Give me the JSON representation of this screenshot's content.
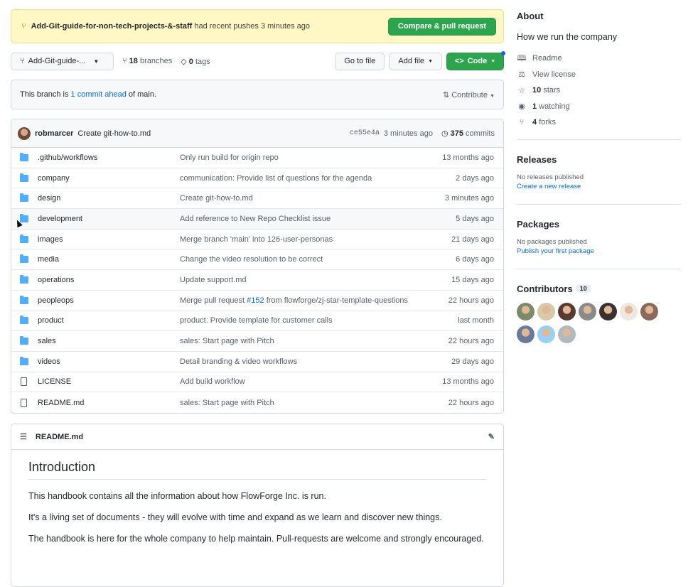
{
  "banner": {
    "branch": "Add-Git-guide-for-non-tech-projects-&-staff",
    "text": "had recent pushes 3 minutes ago",
    "button": "Compare & pull request"
  },
  "toolbar": {
    "branch_select": "Add-Git-guide-...",
    "branches_count": "18",
    "branches_label": "branches",
    "tags_count": "0",
    "tags_label": "tags",
    "go_to_file": "Go to file",
    "add_file": "Add file",
    "code": "Code"
  },
  "branch_info": {
    "prefix": "This branch is",
    "link": "1 commit ahead",
    "suffix": "of main.",
    "contribute": "Contribute"
  },
  "latest_commit": {
    "author": "robmarcer",
    "message": "Create git-how-to.md",
    "sha": "ce55e4a",
    "age": "3 minutes ago",
    "commits_count": "375",
    "commits_label": "commits"
  },
  "files": [
    {
      "type": "dir",
      "name": ".github/workflows",
      "message": "Only run build for origin repo",
      "age": "13 months ago"
    },
    {
      "type": "dir",
      "name": "company",
      "message": "communication: Provide list of questions for the agenda",
      "age": "2 days ago"
    },
    {
      "type": "dir",
      "name": "design",
      "message": "Create git-how-to.md",
      "age": "3 minutes ago"
    },
    {
      "type": "dir",
      "name": "development",
      "message": "Add reference to New Repo Checklist issue",
      "age": "5 days ago"
    },
    {
      "type": "dir",
      "name": "images",
      "message": "Merge branch 'main' into 126-user-personas",
      "age": "21 days ago"
    },
    {
      "type": "dir",
      "name": "media",
      "message": "Change the video resolution to be correct",
      "age": "6 days ago"
    },
    {
      "type": "dir",
      "name": "operations",
      "message": "Update support.md",
      "age": "15 days ago"
    },
    {
      "type": "dir",
      "name": "peopleops",
      "message": "Merge pull request ",
      "message_link": "#152",
      "message_suffix": " from flowforge/zj-star-template-questions",
      "age": "22 hours ago"
    },
    {
      "type": "dir",
      "name": "product",
      "message": "product: Provide template for customer calls",
      "age": "last month"
    },
    {
      "type": "dir",
      "name": "sales",
      "message": "sales: Start page with Pitch",
      "age": "22 hours ago"
    },
    {
      "type": "dir",
      "name": "videos",
      "message": "Detail branding & video workflows",
      "age": "29 days ago"
    },
    {
      "type": "file",
      "name": "LICENSE",
      "message": "Add build workflow",
      "age": "13 months ago"
    },
    {
      "type": "file",
      "name": "README.md",
      "message": "sales: Start page with Pitch",
      "age": "22 hours ago"
    }
  ],
  "readme": {
    "filename": "README.md",
    "heading": "Introduction",
    "paragraphs": [
      "This handbook contains all the information about how FlowForge Inc. is run.",
      "It's a living set of documents - they will evolve with time and expand as we learn and discover new things.",
      "The handbook is here for the whole company to help maintain. Pull-requests are welcome and strongly encouraged."
    ]
  },
  "about": {
    "title": "About",
    "description": "How we run the company",
    "readme": "Readme",
    "license": "View license",
    "stars_count": "10",
    "stars_label": "stars",
    "watching_count": "1",
    "watching_label": "watching",
    "forks_count": "4",
    "forks_label": "forks"
  },
  "releases": {
    "title": "Releases",
    "empty": "No releases published",
    "link": "Create a new release"
  },
  "packages": {
    "title": "Packages",
    "empty": "No packages published",
    "link": "Publish your first package"
  },
  "contributors": {
    "title": "Contributors",
    "count": "10",
    "avatar_colors": [
      "#7a8a6a",
      "#d8c9a8",
      "#5a3a30",
      "#8a8a8a",
      "#3a3030",
      "#f0e8e0",
      "#8a6a5a",
      "#6a7a9a",
      "#9ad0f5",
      "#b0b8c0"
    ]
  },
  "colors": {
    "accent": "#0969da",
    "green": "#2da44e",
    "banner_bg": "#fff8c5",
    "folder": "#54aeff"
  }
}
